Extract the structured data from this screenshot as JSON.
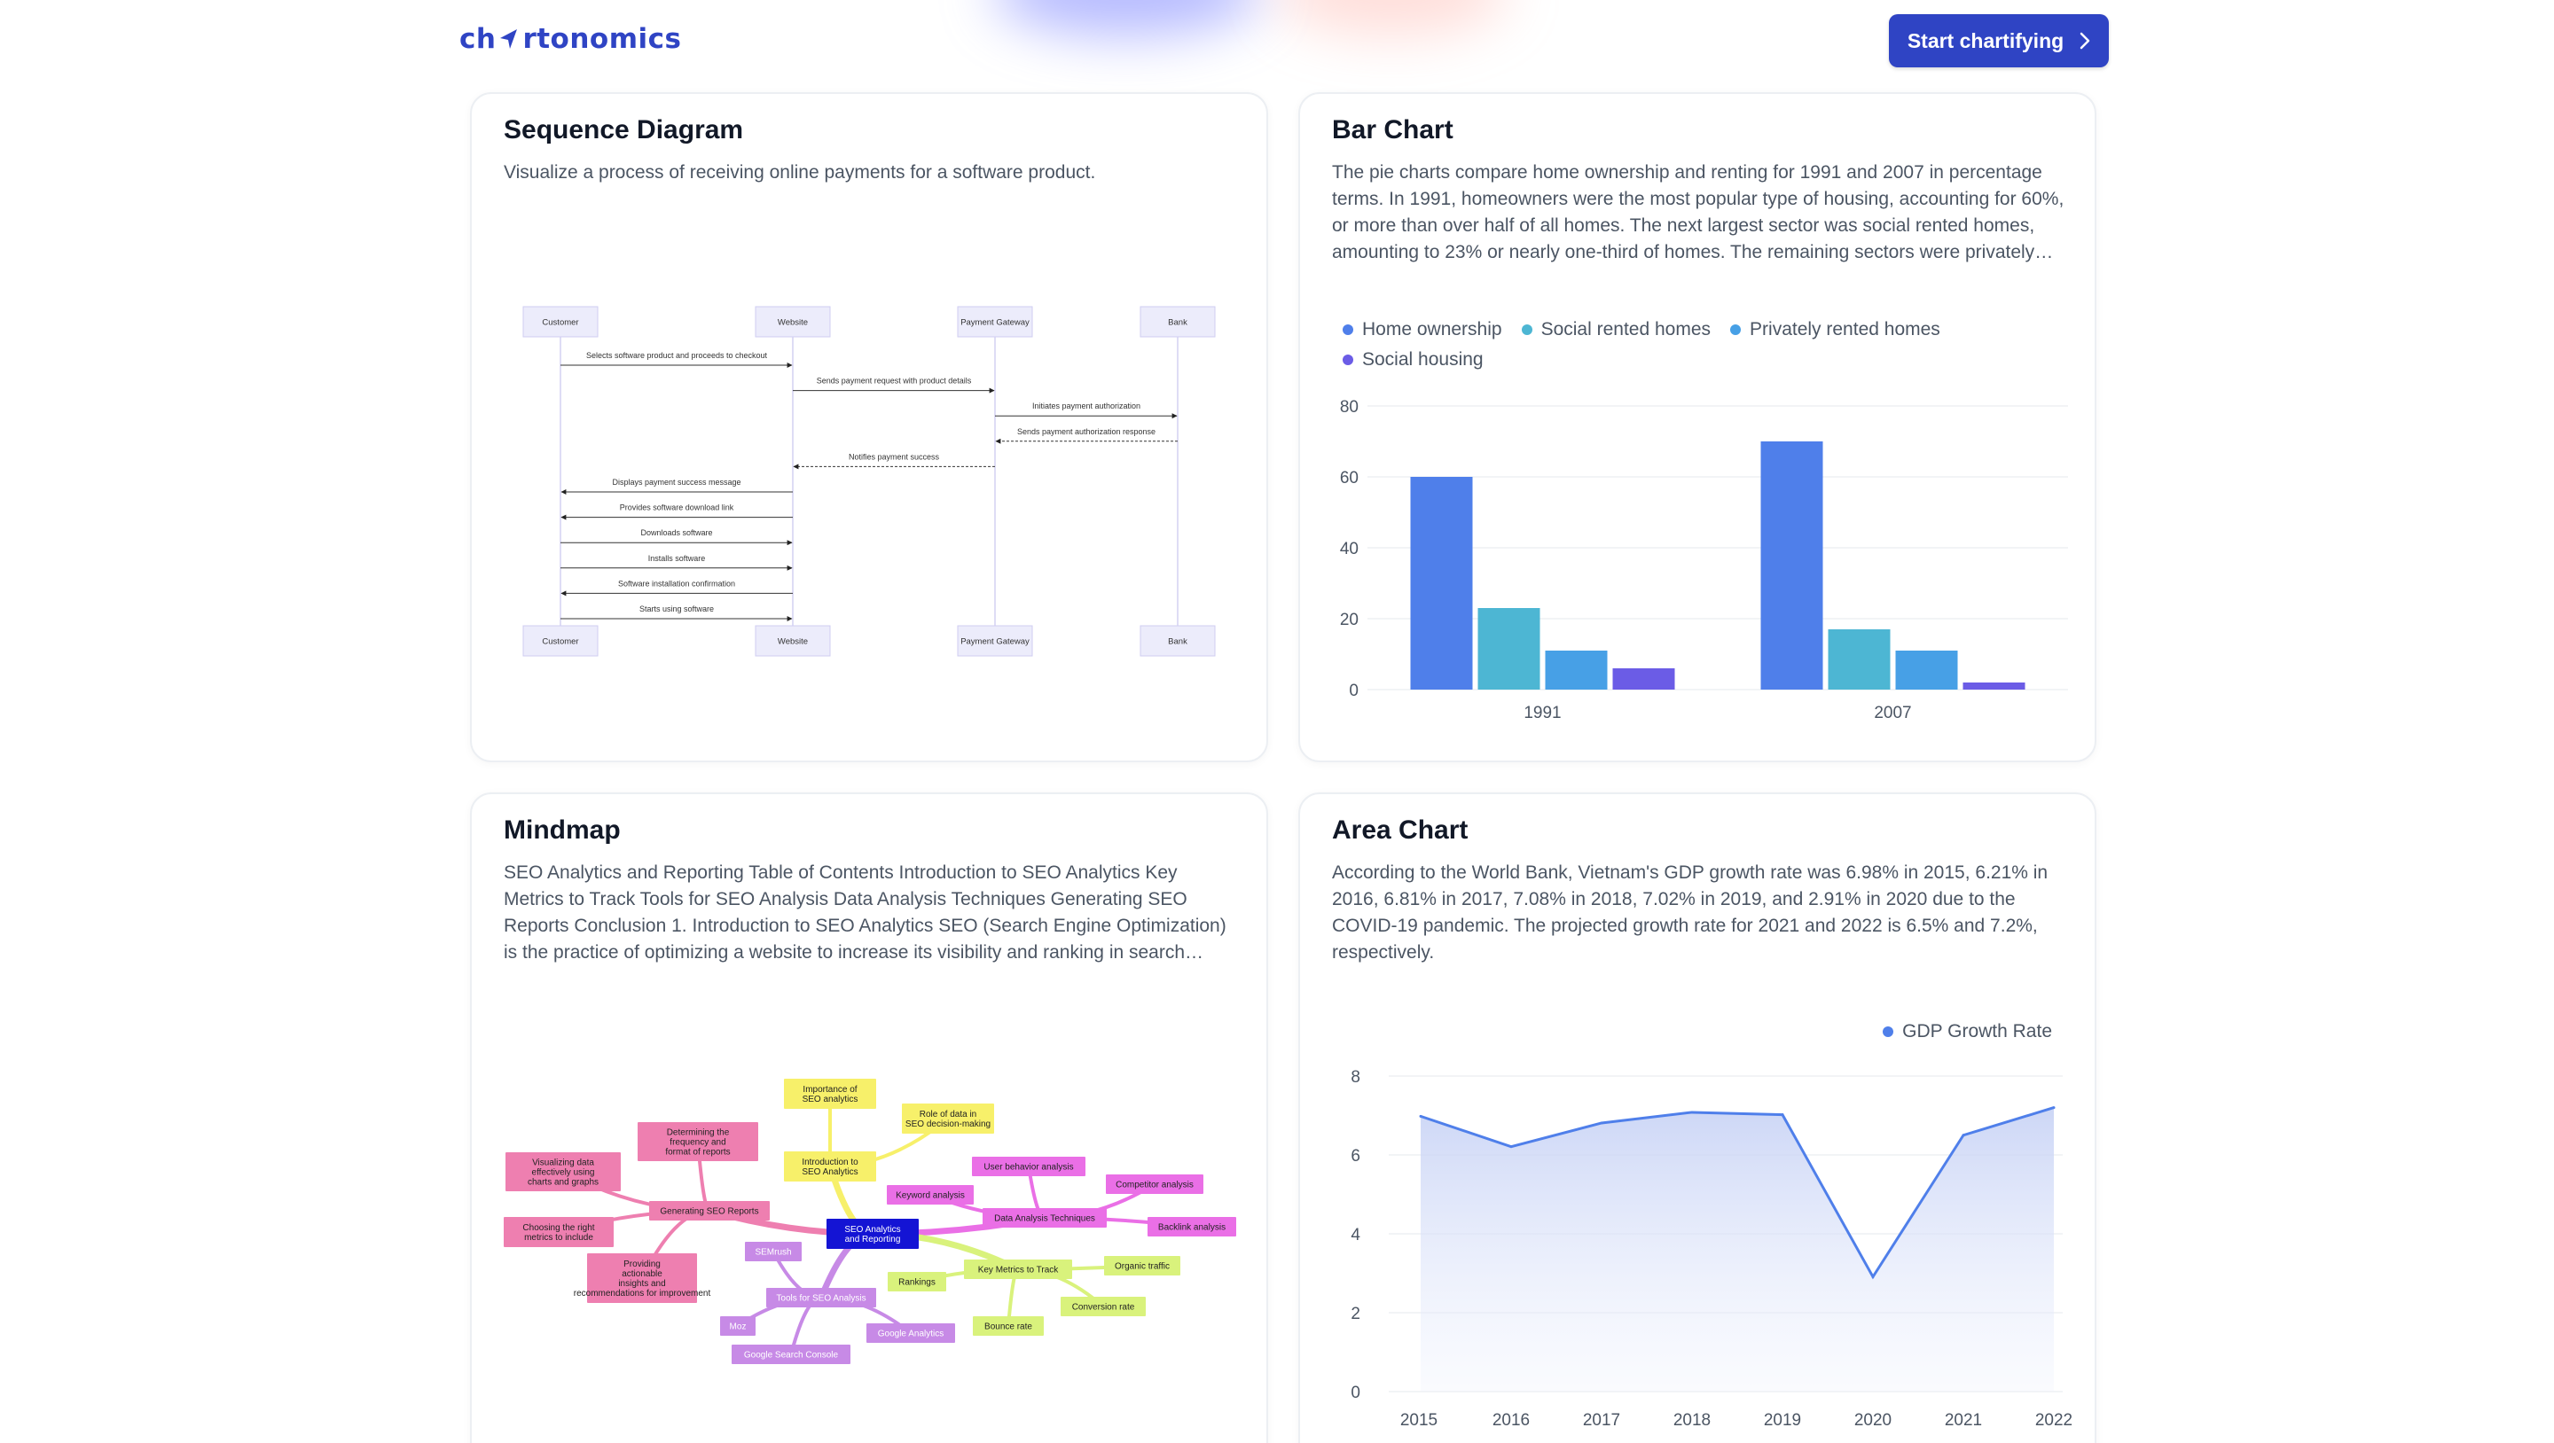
{
  "header": {
    "logo_text_pre": "ch",
    "logo_text_post": "rtonomics",
    "cta_label": "Start chartifying",
    "colors": {
      "brand": "#2f44c4"
    }
  },
  "cards": {
    "sequence": {
      "title": "Sequence Diagram",
      "description": "Visualize a process of receiving online payments for a software product.",
      "actors": [
        "Customer",
        "Website",
        "Payment Gateway",
        "Bank"
      ],
      "messages": [
        {
          "from": 0,
          "to": 1,
          "text": "Selects software product and proceeds to checkout",
          "dashed": false
        },
        {
          "from": 1,
          "to": 2,
          "text": "Sends payment request with product details",
          "dashed": false
        },
        {
          "from": 2,
          "to": 3,
          "text": "Initiates payment authorization",
          "dashed": false
        },
        {
          "from": 3,
          "to": 2,
          "text": "Sends payment authorization response",
          "dashed": true
        },
        {
          "from": 2,
          "to": 1,
          "text": "Notifies payment success",
          "dashed": true
        },
        {
          "from": 1,
          "to": 0,
          "text": "Displays payment success message",
          "dashed": false
        },
        {
          "from": 1,
          "to": 0,
          "text": "Provides software download link",
          "dashed": false
        },
        {
          "from": 0,
          "to": 1,
          "text": "Downloads software",
          "dashed": false
        },
        {
          "from": 0,
          "to": 1,
          "text": "Installs software",
          "dashed": false
        },
        {
          "from": 1,
          "to": 0,
          "text": "Software installation confirmation",
          "dashed": false
        },
        {
          "from": 0,
          "to": 1,
          "text": "Starts using software",
          "dashed": false
        }
      ]
    },
    "bar": {
      "title": "Bar Chart",
      "description": "The pie charts compare home ownership and renting for 1991 and 2007 in percentage terms. In 1991, homeowners were the most popular type of housing, accounting for 60%, or more than over half of all homes. The next largest sector was social rented homes, amounting to 23% or nearly one-third of homes. The remaining sectors were privately rented homes and social housing."
    },
    "mindmap": {
      "title": "Mindmap",
      "description": "SEO Analytics and Reporting Table of Contents Introduction to SEO Analytics Key Metrics to Track Tools for SEO Analysis Data Analysis Techniques Generating SEO Reports Conclusion 1. Introduction to SEO Analytics SEO (Search Engine Optimization) is the practice of optimizing a website to increase its visibility and ranking in search engine results.",
      "root": "SEO Analytics and Reporting",
      "nodes": {
        "intro": "Introduction to SEO Analytics",
        "importance": "Importance of SEO analytics",
        "role": "Role of data in SEO decision-making",
        "data_analysis": "Data Analysis Techniques",
        "user_behavior": "User behavior analysis",
        "keyword": "Keyword analysis",
        "competitor": "Competitor analysis",
        "backlink": "Backlink analysis",
        "key_metrics": "Key Metrics to Track",
        "rankings": "Rankings",
        "organic": "Organic traffic",
        "conversion": "Conversion rate",
        "bounce": "Bounce rate",
        "tools": "Tools for SEO Analysis",
        "semrush": "SEMrush",
        "moz": "Moz",
        "gsc": "Google Search Console",
        "ga": "Google Analytics",
        "reports": "Generating SEO Reports",
        "freq": "Determining the frequency and format of reports",
        "visualizing": "Visualizing data effectively using charts and graphs",
        "choosing": "Choosing the right metrics to include",
        "insights": "Providing actionable insights and recommendations for improvement"
      }
    },
    "area": {
      "title": "Area Chart",
      "description": "According to the World Bank, Vietnam's GDP growth rate was 6.98% in 2015, 6.21% in 2016, 6.81% in 2017, 7.08% in 2018, 7.02% in 2019, and 2.91% in 2020 due to the COVID-19 pandemic. The projected growth rate for 2021 and 2022 is 6.5% and 7.2%, respectively."
    }
  },
  "chart_data": [
    {
      "type": "bar",
      "categories": [
        "1991",
        "2007"
      ],
      "series": [
        {
          "name": "Home ownership",
          "values": [
            60,
            70
          ],
          "color": "#4f7fea"
        },
        {
          "name": "Social rented homes",
          "values": [
            23,
            17
          ],
          "color": "#4db6d3"
        },
        {
          "name": "Privately rented homes",
          "values": [
            11,
            11
          ],
          "color": "#47a0e6"
        },
        {
          "name": "Social housing",
          "values": [
            6,
            2
          ],
          "color": "#6b5ce6"
        }
      ],
      "y_ticks": [
        "0",
        "20",
        "40",
        "60",
        "80"
      ],
      "ylim": [
        0,
        80
      ],
      "grid": true,
      "legend": "top-left"
    },
    {
      "type": "area",
      "x": [
        "2015",
        "2016",
        "2017",
        "2018",
        "2019",
        "2020",
        "2021",
        "2022"
      ],
      "series": [
        {
          "name": "GDP Growth Rate",
          "values": [
            6.98,
            6.21,
            6.81,
            7.08,
            7.02,
            2.91,
            6.5,
            7.2
          ],
          "color": "#4f7fea"
        }
      ],
      "y_ticks": [
        "0",
        "2",
        "4",
        "6",
        "8"
      ],
      "ylim": [
        0,
        8
      ],
      "grid": true,
      "legend": "top-right"
    }
  ]
}
